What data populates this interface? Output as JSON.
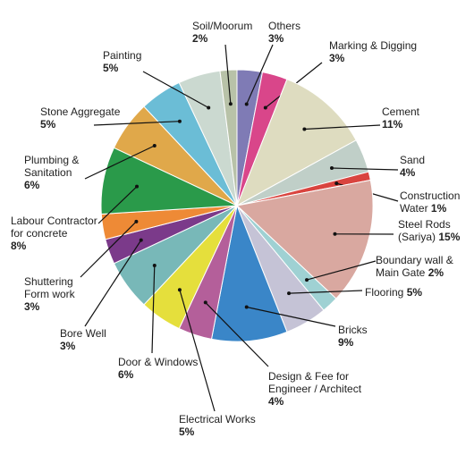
{
  "chart_data": {
    "type": "pie",
    "categories": [
      "Others",
      "Marking & Digging",
      "Cement",
      "Sand",
      "Construction Water",
      "Steel Rods (Sariya)",
      "Boundary wall & Main Gate",
      "Flooring",
      "Bricks",
      "Design & Fee for Engineer / Architect",
      "Electrical Works",
      "Door & Windows",
      "Bore Well",
      "Shuttering Form work",
      "Labour Contractor for concrete",
      "Plumbing & Sanitation",
      "Stone Aggregate",
      "Painting",
      "Soil/Moorum"
    ],
    "values": [
      3,
      3,
      11,
      4,
      1,
      15,
      2,
      5,
      9,
      4,
      5,
      6,
      3,
      3,
      8,
      6,
      5,
      5,
      2
    ],
    "value_labels": [
      "3%",
      "3%",
      "11%",
      "4%",
      "1%",
      "15%",
      "2%",
      "5%",
      "9%",
      "4%",
      "5%",
      "6%",
      "3%",
      "3%",
      "8%",
      "6%",
      "5%",
      "5%",
      "2%"
    ],
    "colors": [
      "#7f7bb5",
      "#d9468a",
      "#dedcc0",
      "#c0cfc8",
      "#d9443f",
      "#d9a8a0",
      "#9fd1d3",
      "#c5c3d6",
      "#3a86c8",
      "#b45f9a",
      "#e5df3c",
      "#78b8b8",
      "#7b3a8a",
      "#ee8a36",
      "#2a9a4a",
      "#e0a84a",
      "#6bbdd6",
      "#cbd9d0",
      "#b8c2a8"
    ]
  }
}
